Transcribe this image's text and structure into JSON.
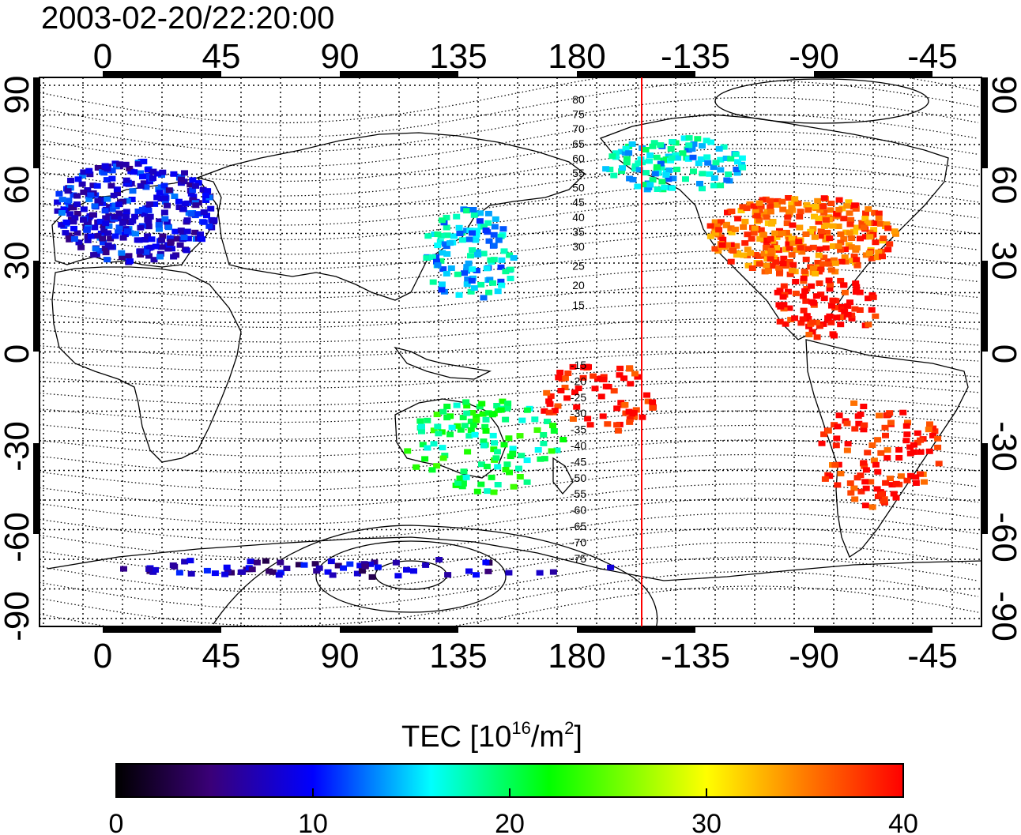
{
  "title": "2003-02-20/22:20:00",
  "colorbar": {
    "label_prefix": "TEC  [10",
    "label_exp1": "16",
    "label_mid": "/m",
    "label_exp2": "2",
    "label_suffix": "]",
    "ticks": [
      "0",
      "10",
      "20",
      "30",
      "40"
    ],
    "min": 0,
    "max": 40,
    "colors": [
      "#000000",
      "#3a0078",
      "#0000ff",
      "#00ffff",
      "#00ff00",
      "#ffff00",
      "#ff8000",
      "#ff0000"
    ]
  },
  "axes": {
    "top_labels": [
      "0",
      "45",
      "90",
      "135",
      "180",
      "-135",
      "-90",
      "-45"
    ],
    "bottom_labels": [
      "0",
      "45",
      "90",
      "135",
      "180",
      "-135",
      "-90",
      "-45"
    ],
    "left_labels": [
      "90",
      "60",
      "30",
      "0",
      "-30",
      "-60",
      "-90"
    ],
    "right_labels": [
      "90",
      "60",
      "30",
      "0",
      "-30",
      "-60",
      "-90"
    ]
  },
  "magnetic_lat_labels_north": [
    "80",
    "75",
    "70",
    "65",
    "60",
    "55",
    "50",
    "45",
    "40",
    "35",
    "30",
    "25",
    "20",
    "15"
  ],
  "magnetic_lat_labels_south": [
    "-15",
    "-20",
    "-25",
    "-30",
    "-35",
    "-40",
    "-45",
    "-50",
    "-55",
    "-60",
    "-65",
    "-70",
    "-75"
  ],
  "marker_line_color": "#ff0000",
  "tec_regions": [
    {
      "name": "europe",
      "value": 9
    },
    {
      "name": "north-america",
      "value": 36
    },
    {
      "name": "mexico-central-america",
      "value": 40
    },
    {
      "name": "south-america",
      "value": 39
    },
    {
      "name": "pacific-islands",
      "value": 40
    },
    {
      "name": "alaska",
      "value": 16
    },
    {
      "name": "japan",
      "value": 15
    },
    {
      "name": "australia",
      "value": 20
    },
    {
      "name": "antarctica",
      "value": 7
    }
  ]
}
